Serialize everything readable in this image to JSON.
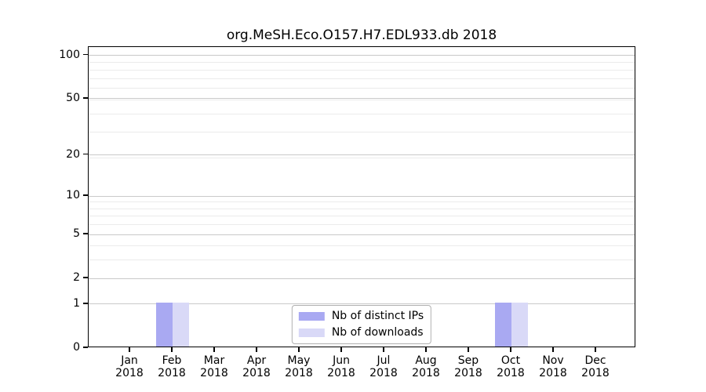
{
  "chart_data": {
    "type": "bar",
    "title": "org.MeSH.Eco.O157.H7.EDL933.db 2018",
    "categories": [
      "Jan",
      "Feb",
      "Mar",
      "Apr",
      "May",
      "Jun",
      "Jul",
      "Aug",
      "Sep",
      "Oct",
      "Nov",
      "Dec"
    ],
    "x_tick_year": "2018",
    "series": [
      {
        "name": "Nb of distinct IPs",
        "color": "#a9a9f2",
        "values": [
          0,
          1,
          0,
          0,
          0,
          0,
          0,
          0,
          0,
          1,
          0,
          0
        ]
      },
      {
        "name": "Nb of downloads",
        "color": "#d9d9f7",
        "values": [
          0,
          1,
          0,
          0,
          0,
          0,
          0,
          0,
          0,
          1,
          0,
          0
        ]
      }
    ],
    "yscale": "log1p",
    "yticks": [
      0,
      1,
      2,
      5,
      10,
      20,
      50,
      100
    ],
    "minor_gridline_values": [
      2,
      3,
      4,
      5,
      6,
      7,
      8,
      9,
      19,
      29,
      39,
      49,
      59,
      69,
      79,
      89
    ],
    "ylim": [
      0,
      113
    ],
    "xlabel": "",
    "ylabel": "",
    "grid": "horizontal",
    "legend_position": "lower center"
  }
}
